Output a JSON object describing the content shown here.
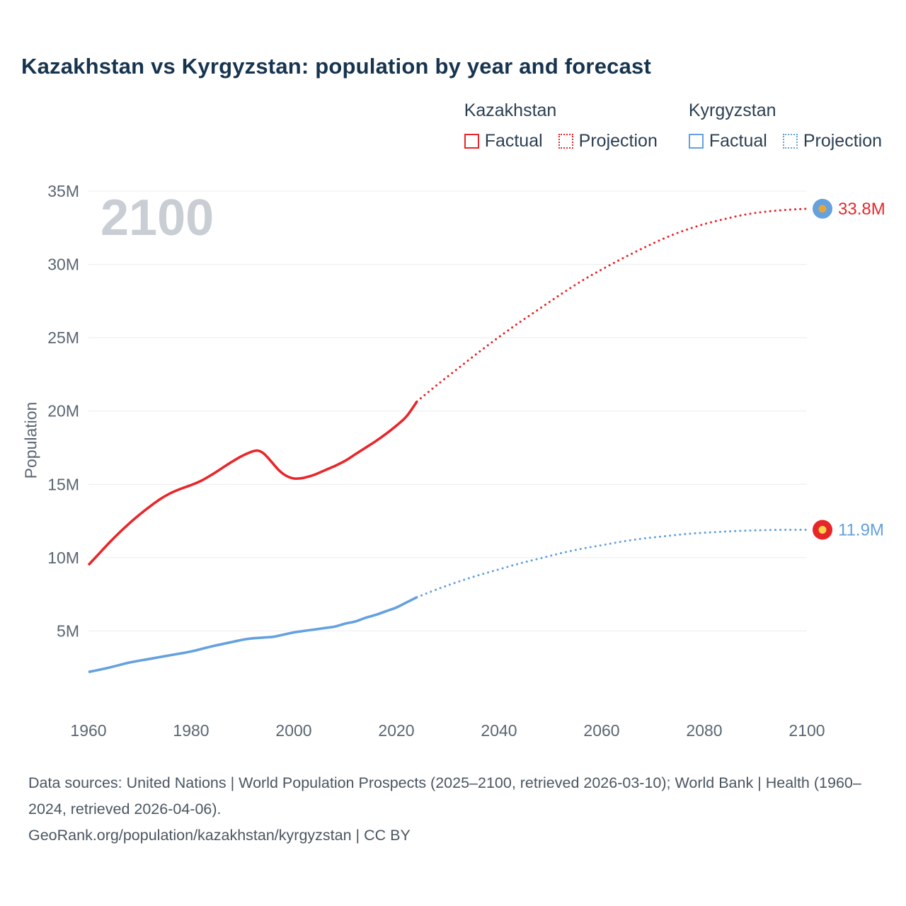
{
  "title": "Kazakhstan vs Kyrgyzstan: population by year and forecast",
  "watermark": "2100",
  "legend": {
    "position": "top-right",
    "groups": [
      {
        "name": "Kazakhstan",
        "color": "#e8262a",
        "items": [
          {
            "label": "Factual",
            "style": "solid"
          },
          {
            "label": "Projection",
            "style": "dotted"
          }
        ]
      },
      {
        "name": "Kyrgyzstan",
        "color": "#64a1de",
        "items": [
          {
            "label": "Factual",
            "style": "solid"
          },
          {
            "label": "Projection",
            "style": "dotted"
          }
        ]
      }
    ]
  },
  "chart_data": {
    "type": "line",
    "title": "Kazakhstan vs Kyrgyzstan: population by year and forecast",
    "xlabel": "",
    "ylabel": "Population",
    "unit": "millions of people",
    "xlim": [
      1960,
      2100
    ],
    "ylim": [
      0,
      35
    ],
    "grid": true,
    "grid_color": "#e9ecef",
    "axis_text_color": "#5a6672",
    "x_ticks": [
      1960,
      1980,
      2000,
      2020,
      2040,
      2060,
      2080,
      2100
    ],
    "x_tick_labels": [
      "1960",
      "1980",
      "2000",
      "2020",
      "2040",
      "2060",
      "2080",
      "2100"
    ],
    "y_ticks": [
      5,
      10,
      15,
      20,
      25,
      30,
      35
    ],
    "y_tick_labels": [
      "5M",
      "10M",
      "15M",
      "20M",
      "25M",
      "30M",
      "35M"
    ],
    "series": [
      {
        "id": "kazakhstan-factual",
        "name": "Kazakhstan Factual",
        "color": "#e8262a",
        "dash": "solid",
        "points": [
          [
            1960,
            9.5
          ],
          [
            1962,
            10.25
          ],
          [
            1964,
            11.0
          ],
          [
            1966,
            11.7
          ],
          [
            1968,
            12.35
          ],
          [
            1970,
            12.95
          ],
          [
            1972,
            13.5
          ],
          [
            1974,
            14.0
          ],
          [
            1976,
            14.4
          ],
          [
            1978,
            14.7
          ],
          [
            1980,
            14.95
          ],
          [
            1982,
            15.25
          ],
          [
            1984,
            15.65
          ],
          [
            1986,
            16.1
          ],
          [
            1988,
            16.55
          ],
          [
            1990,
            16.95
          ],
          [
            1992,
            17.25
          ],
          [
            1993,
            17.3
          ],
          [
            1994,
            17.15
          ],
          [
            1995,
            16.8
          ],
          [
            1996,
            16.4
          ],
          [
            1997,
            16.0
          ],
          [
            1998,
            15.7
          ],
          [
            1999,
            15.5
          ],
          [
            2000,
            15.4
          ],
          [
            2001,
            15.4
          ],
          [
            2002,
            15.45
          ],
          [
            2004,
            15.65
          ],
          [
            2006,
            15.95
          ],
          [
            2008,
            16.25
          ],
          [
            2010,
            16.6
          ],
          [
            2012,
            17.05
          ],
          [
            2014,
            17.5
          ],
          [
            2016,
            17.95
          ],
          [
            2018,
            18.45
          ],
          [
            2020,
            19.0
          ],
          [
            2022,
            19.65
          ],
          [
            2024,
            20.65
          ]
        ]
      },
      {
        "id": "kazakhstan-projection",
        "name": "Kazakhstan Projection",
        "color": "#e8262a",
        "dash": "dotted",
        "points": [
          [
            2024,
            20.65
          ],
          [
            2028,
            21.8
          ],
          [
            2032,
            22.9
          ],
          [
            2036,
            24.0
          ],
          [
            2040,
            25.05
          ],
          [
            2044,
            26.05
          ],
          [
            2048,
            27.0
          ],
          [
            2052,
            27.95
          ],
          [
            2056,
            28.85
          ],
          [
            2060,
            29.65
          ],
          [
            2064,
            30.4
          ],
          [
            2068,
            31.1
          ],
          [
            2072,
            31.75
          ],
          [
            2076,
            32.3
          ],
          [
            2080,
            32.75
          ],
          [
            2084,
            33.1
          ],
          [
            2088,
            33.4
          ],
          [
            2092,
            33.6
          ],
          [
            2096,
            33.72
          ],
          [
            2100,
            33.8
          ]
        ]
      },
      {
        "id": "kyrgyzstan-factual",
        "name": "Kyrgyzstan Factual",
        "color": "#64a1de",
        "dash": "solid",
        "points": [
          [
            1960,
            2.2
          ],
          [
            1964,
            2.5
          ],
          [
            1968,
            2.85
          ],
          [
            1972,
            3.1
          ],
          [
            1976,
            3.35
          ],
          [
            1980,
            3.6
          ],
          [
            1984,
            3.95
          ],
          [
            1988,
            4.25
          ],
          [
            1990,
            4.4
          ],
          [
            1992,
            4.5
          ],
          [
            1994,
            4.55
          ],
          [
            1996,
            4.6
          ],
          [
            1998,
            4.75
          ],
          [
            2000,
            4.9
          ],
          [
            2002,
            5.0
          ],
          [
            2004,
            5.1
          ],
          [
            2006,
            5.2
          ],
          [
            2008,
            5.3
          ],
          [
            2010,
            5.5
          ],
          [
            2012,
            5.65
          ],
          [
            2014,
            5.9
          ],
          [
            2016,
            6.1
          ],
          [
            2018,
            6.35
          ],
          [
            2020,
            6.6
          ],
          [
            2022,
            6.95
          ],
          [
            2024,
            7.3
          ]
        ]
      },
      {
        "id": "kyrgyzstan-projection",
        "name": "Kyrgyzstan Projection",
        "color": "#64a1de",
        "dash": "dotted",
        "points": [
          [
            2024,
            7.3
          ],
          [
            2028,
            7.85
          ],
          [
            2032,
            8.35
          ],
          [
            2036,
            8.8
          ],
          [
            2040,
            9.2
          ],
          [
            2044,
            9.6
          ],
          [
            2048,
            9.95
          ],
          [
            2052,
            10.3
          ],
          [
            2056,
            10.6
          ],
          [
            2060,
            10.85
          ],
          [
            2064,
            11.1
          ],
          [
            2068,
            11.3
          ],
          [
            2072,
            11.45
          ],
          [
            2076,
            11.6
          ],
          [
            2080,
            11.7
          ],
          [
            2084,
            11.78
          ],
          [
            2088,
            11.84
          ],
          [
            2092,
            11.88
          ],
          [
            2096,
            11.9
          ],
          [
            2100,
            11.9
          ]
        ]
      }
    ],
    "end_markers": [
      {
        "flag": "kazakhstan",
        "value_label": "33.8M",
        "x": 2100,
        "y": 33.8,
        "label_color": "#e8262a",
        "flag_fill": "#64a1de",
        "flag_sun": "#e2a63d"
      },
      {
        "flag": "kyrgyzstan",
        "value_label": "11.9M",
        "x": 2100,
        "y": 11.9,
        "label_color": "#64a1de",
        "flag_fill": "#e8262a",
        "flag_sun": "#f6d44b"
      }
    ]
  },
  "footer": {
    "sources": "Data sources: United Nations | World Population Prospects (2025–2100, retrieved 2026-03-10); World Bank | Health (1960–2024, retrieved 2026-04-06).",
    "link": "GeoRank.org/population/kazakhstan/kyrgyzstan | CC BY"
  }
}
